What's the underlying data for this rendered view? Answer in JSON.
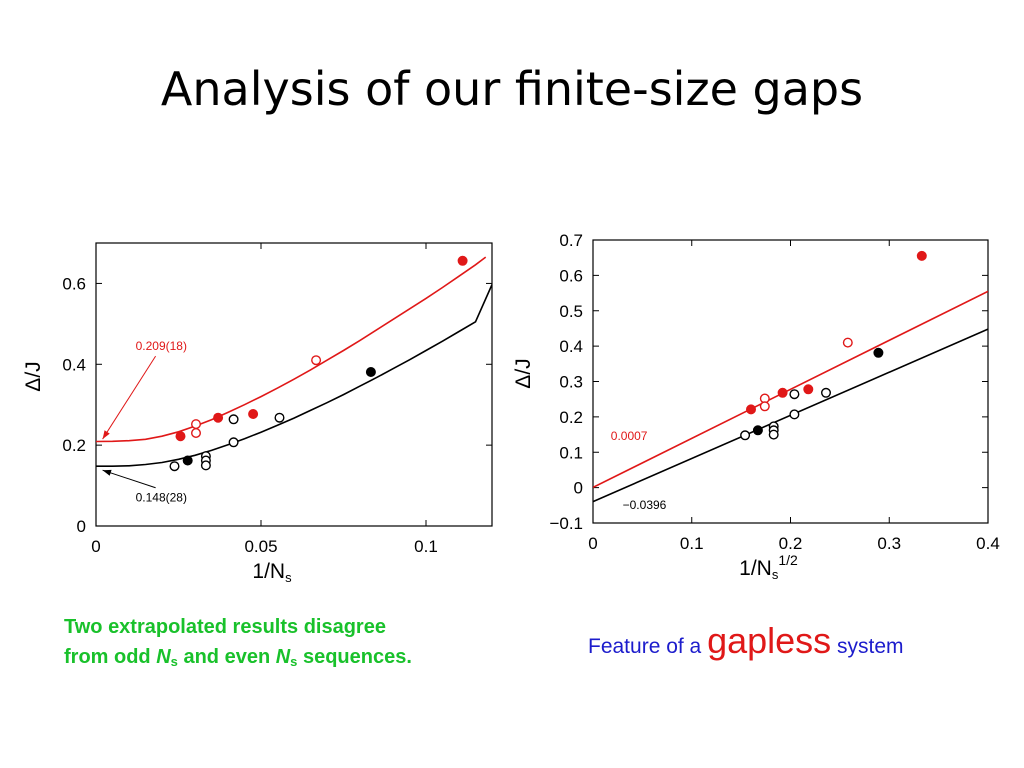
{
  "title": "Analysis of our finite-size gaps",
  "chart_data": [
    {
      "type": "scatter",
      "title": "",
      "xlabel": "1/N",
      "xlabel_sub": "s",
      "xlabel_sup": "",
      "ylabel": "Δ/J",
      "xlim": [
        0,
        0.12
      ],
      "ylim": [
        0,
        0.7
      ],
      "xticks": [
        0,
        0.05,
        0.1
      ],
      "xtick_labels": [
        "0",
        "0.05",
        "0.1"
      ],
      "yticks": [
        0,
        0.2,
        0.4,
        0.6
      ],
      "ytick_labels": [
        "0",
        "0.2",
        "0.4",
        "0.6"
      ],
      "series": [
        {
          "color": "#e01818",
          "filled": true,
          "x": [
            0.0256,
            0.037,
            0.0476,
            0.1111
          ],
          "y": [
            0.222,
            0.268,
            0.277,
            0.656
          ]
        },
        {
          "color": "#e01818",
          "filled": false,
          "x": [
            0.0303,
            0.0303,
            0.0667
          ],
          "y": [
            0.252,
            0.23,
            0.41
          ]
        },
        {
          "color": "#000000",
          "filled": true,
          "x": [
            0.0278,
            0.0833
          ],
          "y": [
            0.162,
            0.381
          ]
        },
        {
          "color": "#000000",
          "filled": false,
          "x": [
            0.0238,
            0.0333,
            0.0333,
            0.0333,
            0.0417,
            0.0417,
            0.0556
          ],
          "y": [
            0.148,
            0.173,
            0.162,
            0.15,
            0.264,
            0.207,
            0.268
          ]
        }
      ],
      "fits": [
        {
          "color": "#e01818",
          "x": [
            0,
            0.005,
            0.01,
            0.015,
            0.02,
            0.025,
            0.03,
            0.035,
            0.04,
            0.045,
            0.05,
            0.055,
            0.06,
            0.065,
            0.07,
            0.075,
            0.08,
            0.085,
            0.09,
            0.095,
            0.1,
            0.105,
            0.11,
            0.115,
            0.1181
          ],
          "y": [
            0.209,
            0.2095,
            0.211,
            0.2145,
            0.222,
            0.233,
            0.247,
            0.263,
            0.281,
            0.3,
            0.32,
            0.341,
            0.363,
            0.386,
            0.41,
            0.434,
            0.459,
            0.485,
            0.511,
            0.537,
            0.563,
            0.59,
            0.618,
            0.646,
            0.665
          ]
        },
        {
          "color": "#000000",
          "x": [
            0,
            0.005,
            0.01,
            0.015,
            0.02,
            0.025,
            0.03,
            0.035,
            0.04,
            0.045,
            0.05,
            0.055,
            0.06,
            0.065,
            0.07,
            0.075,
            0.08,
            0.085,
            0.09,
            0.095,
            0.1,
            0.105,
            0.11,
            0.115,
            0.12
          ],
          "y": [
            0.148,
            0.148,
            0.149,
            0.152,
            0.157,
            0.165,
            0.175,
            0.187,
            0.201,
            0.216,
            0.232,
            0.249,
            0.267,
            0.286,
            0.305,
            0.325,
            0.346,
            0.367,
            0.389,
            0.411,
            0.434,
            0.457,
            0.481,
            0.505,
            0.597
          ]
        }
      ],
      "annotations": [
        {
          "text": "0.209(18)",
          "color": "#e01818",
          "x": 0.012,
          "y": 0.435,
          "arrow_to": [
            0.002,
            0.215
          ]
        },
        {
          "text": "0.148(28)",
          "color": "#000000",
          "x": 0.012,
          "y": 0.06,
          "arrow_to": [
            0.002,
            0.138
          ]
        }
      ]
    },
    {
      "type": "scatter",
      "title": "",
      "xlabel": "1/N",
      "xlabel_sub": "s",
      "xlabel_sup": "1/2",
      "ylabel": "Δ/J",
      "xlim": [
        0,
        0.4
      ],
      "ylim": [
        -0.1,
        0.7
      ],
      "xticks": [
        0,
        0.1,
        0.2,
        0.3,
        0.4
      ],
      "xtick_labels": [
        "0",
        "0.1",
        "0.2",
        "0.3",
        "0.4"
      ],
      "yticks": [
        -0.1,
        0,
        0.1,
        0.2,
        0.3,
        0.4,
        0.5,
        0.6,
        0.7
      ],
      "ytick_labels": [
        "−0.1",
        "0",
        "0.1",
        "0.2",
        "0.3",
        "0.4",
        "0.5",
        "0.6",
        "0.7"
      ],
      "series": [
        {
          "color": "#e01818",
          "filled": true,
          "x": [
            0.16,
            0.192,
            0.218,
            0.333
          ],
          "y": [
            0.221,
            0.268,
            0.278,
            0.655
          ]
        },
        {
          "color": "#e01818",
          "filled": false,
          "x": [
            0.174,
            0.174,
            0.258
          ],
          "y": [
            0.252,
            0.23,
            0.41
          ]
        },
        {
          "color": "#000000",
          "filled": true,
          "x": [
            0.167,
            0.289
          ],
          "y": [
            0.162,
            0.381
          ]
        },
        {
          "color": "#000000",
          "filled": false,
          "x": [
            0.154,
            0.183,
            0.183,
            0.183,
            0.204,
            0.204,
            0.236
          ],
          "y": [
            0.148,
            0.173,
            0.162,
            0.15,
            0.264,
            0.207,
            0.268
          ]
        }
      ],
      "fits": [
        {
          "color": "#e01818",
          "x": [
            0,
            0.4
          ],
          "y": [
            0.0007,
            0.555
          ]
        },
        {
          "color": "#000000",
          "x": [
            0,
            0.4
          ],
          "y": [
            -0.0396,
            0.448
          ]
        }
      ],
      "annotations": [
        {
          "text": "0.0007",
          "color": "#e01818",
          "x": 0.018,
          "y": 0.134
        },
        {
          "text": "−0.0396",
          "color": "#000000",
          "x": 0.03,
          "y": -0.06
        }
      ]
    }
  ],
  "captions": {
    "left_line1": "Two extrapolated results disagree",
    "left_line2_a": "from odd ",
    "left_ns": "N",
    "left_ns_sub": "s",
    "left_line2_b": " and even ",
    "left_line2_c": " sequences.",
    "right_a": "Feature of a ",
    "right_big": "gapless",
    "right_b": " system"
  }
}
